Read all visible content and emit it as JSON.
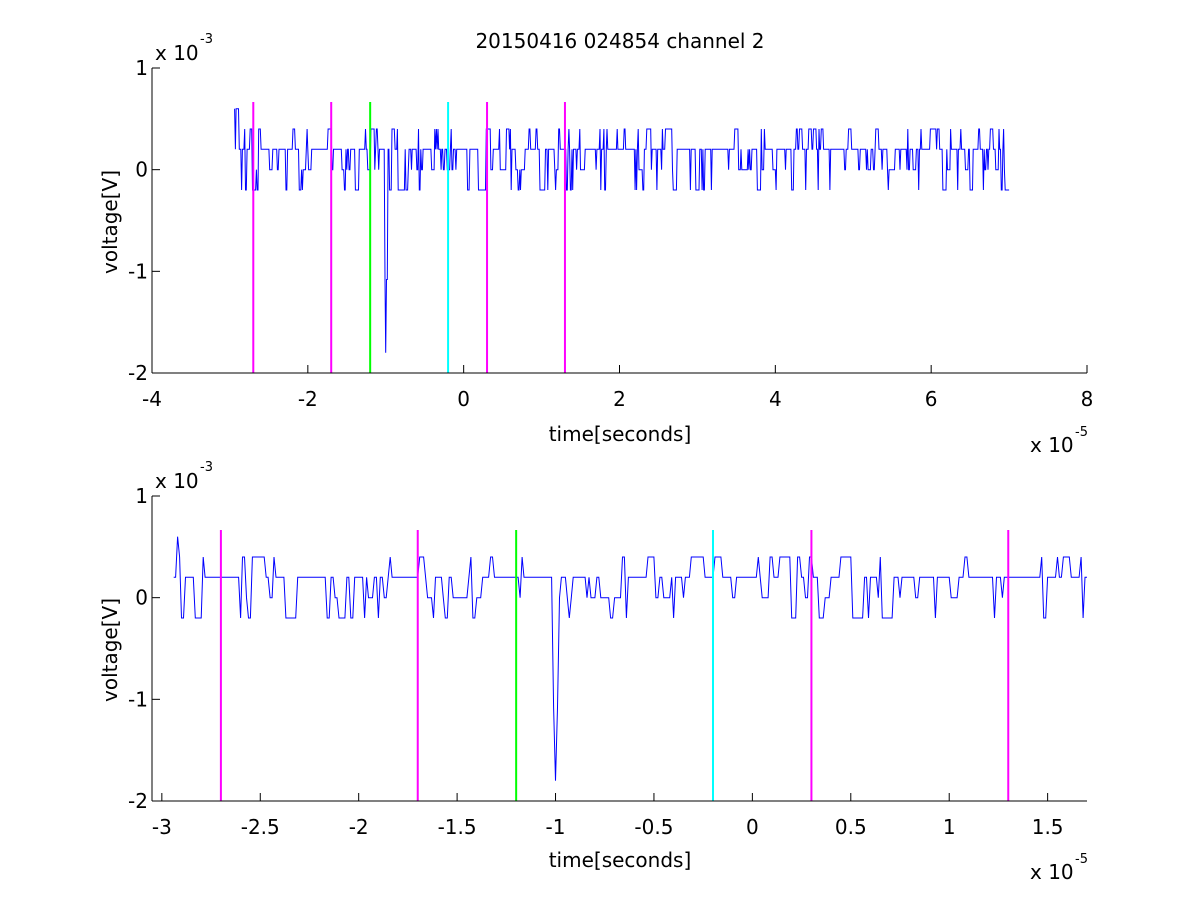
{
  "figure_title": "20150416 024854 channel 2",
  "colors": {
    "signal": "#0000ff",
    "magenta": "#ff00ff",
    "green": "#00ff00",
    "cyan": "#00ffff",
    "axes": "#000000"
  },
  "chart_data": [
    {
      "type": "line",
      "title": "20150416 024854 channel 2",
      "xlabel": "time[seconds]",
      "ylabel": "voltage[V]",
      "x_multiplier": "x 10",
      "x_exponent": "-5",
      "y_multiplier": "x 10",
      "y_exponent": "-3",
      "xlim": [
        -4e-05,
        8e-05
      ],
      "ylim": [
        -0.002,
        0.001
      ],
      "xticks": [
        -4e-05,
        -2e-05,
        0,
        2e-05,
        4e-05,
        6e-05,
        8e-05
      ],
      "xticklabels": [
        "-4",
        "-2",
        "0",
        "2",
        "4",
        "6",
        "8"
      ],
      "yticks": [
        -0.002,
        -0.001,
        0,
        0.001
      ],
      "yticklabels": [
        "-2",
        "-1",
        "0",
        "1"
      ],
      "grid": false,
      "signal_range": [
        -2.94e-05,
        7e-05
      ],
      "signal_baseline": 0.0002,
      "signal_spike": {
        "x": -1e-05,
        "y": -0.0018
      },
      "markers": [
        {
          "x": -2.7e-05,
          "color": "magenta"
        },
        {
          "x": -1.7e-05,
          "color": "magenta"
        },
        {
          "x": -1.2e-05,
          "color": "green"
        },
        {
          "x": -2e-06,
          "color": "cyan"
        },
        {
          "x": 3e-06,
          "color": "magenta"
        },
        {
          "x": 1.3e-05,
          "color": "magenta"
        }
      ]
    },
    {
      "type": "line",
      "xlabel": "time[seconds]",
      "ylabel": "voltage[V]",
      "x_multiplier": "x 10",
      "x_exponent": "-5",
      "y_multiplier": "x 10",
      "y_exponent": "-3",
      "xlim": [
        -3.05e-05,
        1.7e-05
      ],
      "ylim": [
        -0.002,
        0.001
      ],
      "xticks": [
        -3e-05,
        -2.5e-05,
        -2e-05,
        -1.5e-05,
        -1e-05,
        -5e-06,
        0,
        5e-06,
        1e-05,
        1.5e-05
      ],
      "xticklabels": [
        "-3",
        "-2.5",
        "-2",
        "-1.5",
        "-1",
        "-0.5",
        "0",
        "0.5",
        "1",
        "1.5"
      ],
      "yticks": [
        -0.002,
        -0.001,
        0,
        0.001
      ],
      "yticklabels": [
        "-2",
        "-1",
        "0",
        "1"
      ],
      "grid": false,
      "signal_range": [
        -2.94e-05,
        1.7e-05
      ],
      "signal_baseline": 0.0002,
      "signal_spike": {
        "x": -1e-05,
        "y": -0.0018
      },
      "markers": [
        {
          "x": -2.7e-05,
          "color": "magenta"
        },
        {
          "x": -1.7e-05,
          "color": "magenta"
        },
        {
          "x": -1.2e-05,
          "color": "green"
        },
        {
          "x": -2e-06,
          "color": "cyan"
        },
        {
          "x": 3e-06,
          "color": "magenta"
        },
        {
          "x": 1.3e-05,
          "color": "magenta"
        }
      ]
    }
  ]
}
